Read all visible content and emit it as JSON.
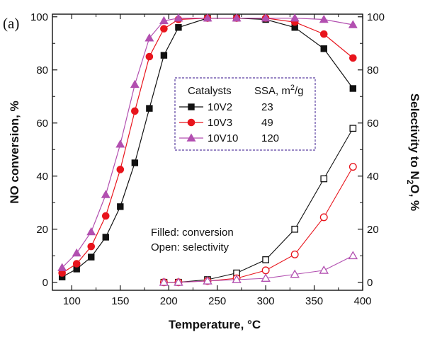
{
  "chart_data": {
    "type": "line",
    "panel_label": "(a)",
    "xlabel": "Temperature, °C",
    "ylabel_left": "NO conversion, %",
    "ylabel_right_parts": [
      "Selectivity to N",
      "2",
      "O, %"
    ],
    "xlim": [
      80,
      400
    ],
    "ylim_left": [
      -3,
      101
    ],
    "ylim_right": [
      -3,
      101
    ],
    "x_ticks": [
      100,
      150,
      200,
      250,
      300,
      350,
      400
    ],
    "y_ticks_left": [
      0,
      20,
      40,
      60,
      80,
      100
    ],
    "y_ticks_right": [
      0,
      20,
      40,
      60,
      80,
      100
    ],
    "legend": {
      "header_catalysts": "Catalysts",
      "header_ssa_parts": [
        "SSA, m",
        "2",
        "/g"
      ],
      "entries": [
        {
          "name": "10V2",
          "ssa": "23"
        },
        {
          "name": "10V3",
          "ssa": "49"
        },
        {
          "name": "10V10",
          "ssa": "120"
        }
      ]
    },
    "annotations": [
      "Filled: conversion",
      "Open: selectivity"
    ],
    "conversion_x": [
      90,
      105,
      120,
      135,
      150,
      165,
      180,
      195,
      210,
      240,
      270,
      300,
      330,
      360,
      390
    ],
    "selectivity_x": [
      195,
      210,
      240,
      270,
      300,
      330,
      360,
      390
    ],
    "series": [
      {
        "name": "10V2",
        "color": "#111111",
        "marker": "square",
        "conversion": [
          2,
          5,
          9.5,
          17,
          28.5,
          45,
          65.5,
          85.5,
          96,
          99.5,
          99.5,
          99,
          96,
          88,
          73
        ],
        "selectivity": [
          0,
          0,
          1,
          3.5,
          8.5,
          20,
          39,
          58
        ]
      },
      {
        "name": "10V3",
        "color": "#e8141c",
        "marker": "circle",
        "conversion": [
          3.5,
          7,
          13.5,
          25,
          42.5,
          64.5,
          85,
          95.5,
          99,
          99.5,
          99.5,
          99.5,
          98,
          93.5,
          84.5
        ],
        "selectivity": [
          0,
          0,
          0.5,
          1.5,
          4.5,
          10.5,
          24.5,
          43.5
        ]
      },
      {
        "name": "10V10",
        "color": "#b24fb0",
        "marker": "triangle",
        "conversion": [
          5.5,
          11,
          19,
          33,
          52,
          74.5,
          92,
          98.5,
          99.5,
          99.5,
          99.5,
          99.5,
          99.5,
          99,
          97
        ],
        "selectivity": [
          0,
          0,
          0.5,
          1,
          1.5,
          3,
          4.5,
          10
        ]
      }
    ]
  }
}
